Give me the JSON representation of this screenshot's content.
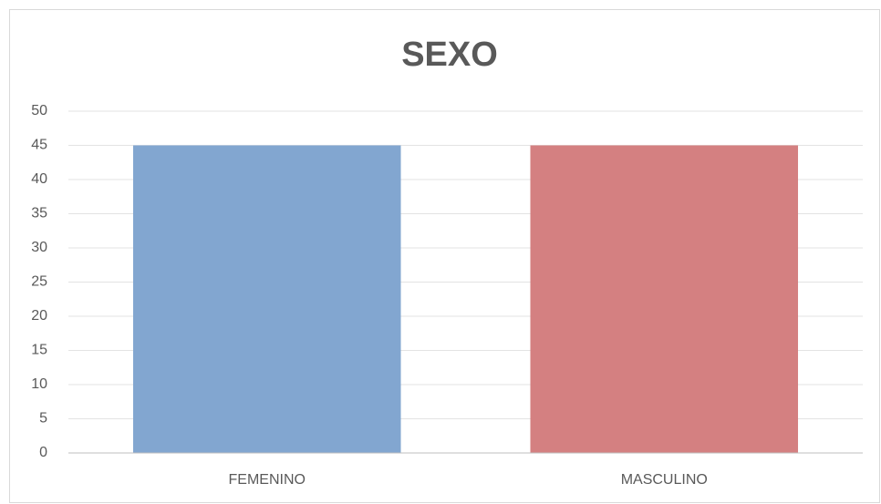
{
  "chart_data": {
    "type": "bar",
    "title": "SEXO",
    "categories": [
      "FEMENINO",
      "MASCULINO"
    ],
    "values": [
      45,
      45
    ],
    "colors": [
      "#82a6d0",
      "#d48081"
    ],
    "ylim": [
      0,
      50
    ],
    "yticks": [
      0,
      5,
      10,
      15,
      20,
      25,
      30,
      35,
      40,
      45,
      50
    ],
    "grid": true
  }
}
